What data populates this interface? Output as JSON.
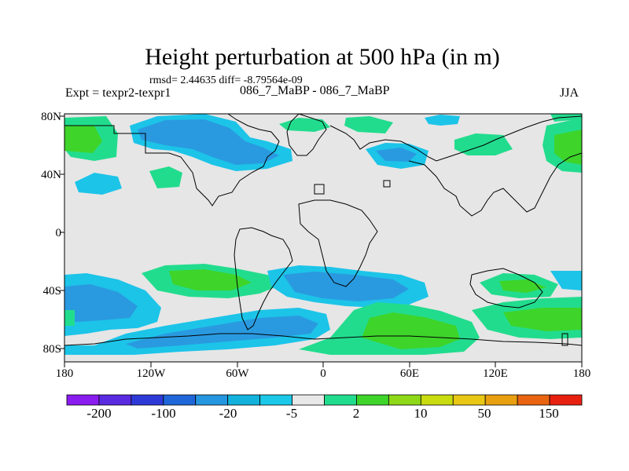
{
  "title": "Height perturbation at 500 hPa (in m)",
  "stats": "rmsd= 2.44635 diff= -8.79564e-09",
  "left_label": "Expt = texpr2-texpr1",
  "center_label": "086_7_MaBP - 086_7_MaBP",
  "right_label": "JJA",
  "axes": {
    "lat_labels": [
      "80N",
      "40N",
      "0",
      "40S",
      "80S"
    ],
    "lon_labels": [
      "180",
      "120W",
      "60W",
      "0",
      "60E",
      "120E",
      "180"
    ]
  },
  "colorbar": {
    "labels": [
      "-200",
      "-100",
      "-20",
      "-5",
      "2",
      "10",
      "50",
      "150"
    ],
    "colors": [
      "#8a1cf0",
      "#5a2ae0",
      "#2e3ad8",
      "#1f66d8",
      "#2596e0",
      "#12b2dc",
      "#1cc8e8",
      "#e8e8e8",
      "#22dc8e",
      "#3ed42a",
      "#8ed818",
      "#c8dc10",
      "#e8c814",
      "#e8a010",
      "#e86410",
      "#e82010"
    ]
  },
  "colors": {
    "background_field": "#e6e6e6",
    "light_blue": "#1cc4e8",
    "mid_blue": "#2a9ae0",
    "light_green": "#22dc8e",
    "green": "#3ed42a",
    "coastline": "#000000"
  }
}
